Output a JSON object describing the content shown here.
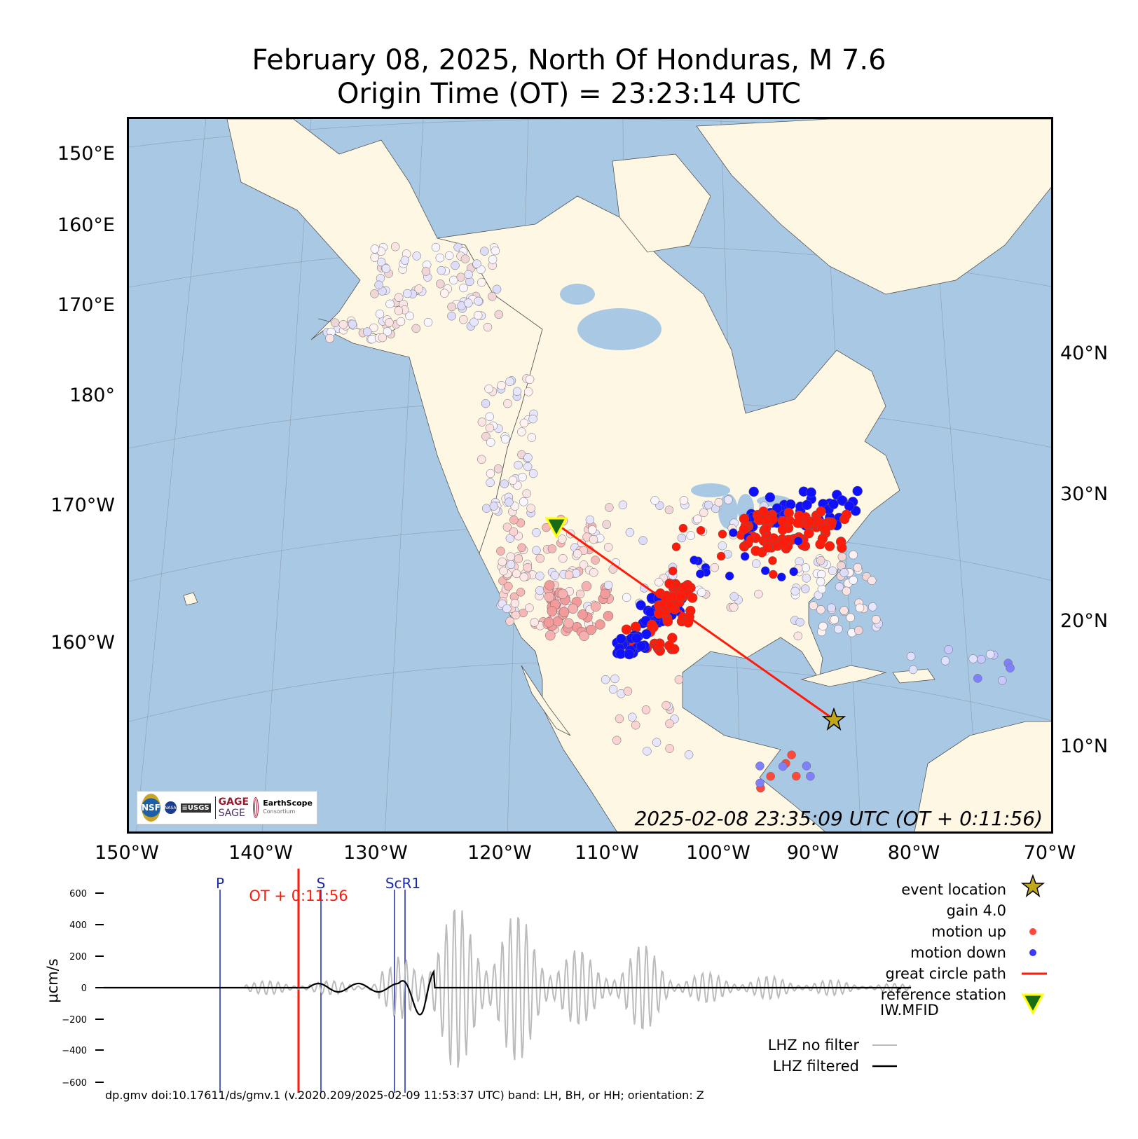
{
  "title_line1": "February 08, 2025, North Of Honduras, M 7.6",
  "title_line2": "Origin Time (OT) = 23:23:14 UTC",
  "map": {
    "left_labels": [
      "150°E",
      "160°E",
      "170°E",
      "180°",
      "170°W",
      "160°W"
    ],
    "right_labels": [
      "40°N",
      "30°N",
      "20°N",
      "10°N"
    ],
    "bottom_labels": [
      "150°W",
      "140°W",
      "130°W",
      "120°W",
      "110°W",
      "100°W",
      "90°W",
      "80°W",
      "70°W"
    ],
    "timestamp": "2025-02-08 23:35:09 UTC (OT + 0:11:56)",
    "colors": {
      "ocean": "#a9c8e4",
      "land": "#fdf7e3",
      "up": "#ff1a0a",
      "down": "#0a14ff",
      "path": "#ff1a0a"
    }
  },
  "logos": {
    "nsf": "NSF",
    "nasa": "NASA",
    "usgs": "≡USGS",
    "gage": "GAGE",
    "sage": "SAGE",
    "earthscope": "EarthScope",
    "consortium": "Consortium",
    "operated_by": "Operated by"
  },
  "waveform": {
    "ylabel": "μcm/s",
    "yticks": [
      "600",
      "400",
      "200",
      "0",
      "−200",
      "−400",
      "−600"
    ],
    "phases": [
      "P",
      "S",
      "ScR1"
    ],
    "ot_label": "OT + 0:11:56"
  },
  "legend": {
    "event_location": "event location",
    "gain": "gain  4.0",
    "motion_up": "motion up",
    "motion_down": "motion down",
    "great_circle": "great circle path",
    "reference_station": "reference station",
    "station_code": "IW.MFID",
    "no_filter": "LHZ no filter",
    "filtered": "LHZ filtered"
  },
  "footer": "dp.gmv doi:10.17611/ds/gmv.1 (v.2020.209/2025-02-09 11:53:37 UTC) band: LH, BH, or HH; orientation: Z"
}
